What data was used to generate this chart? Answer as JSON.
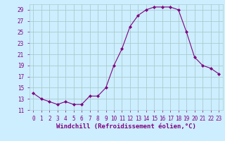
{
  "x": [
    0,
    1,
    2,
    3,
    4,
    5,
    6,
    7,
    8,
    9,
    10,
    11,
    12,
    13,
    14,
    15,
    16,
    17,
    18,
    19,
    20,
    21,
    22,
    23
  ],
  "y": [
    14,
    13,
    12.5,
    12,
    12.5,
    12,
    12,
    13.5,
    13.5,
    15,
    19,
    22,
    26,
    28,
    29,
    29.5,
    29.5,
    29.5,
    29,
    25,
    20.5,
    19,
    18.5,
    17.5
  ],
  "line_color": "#800080",
  "marker": "D",
  "marker_size": 2,
  "bg_color": "#cceeff",
  "grid_color": "#aacccc",
  "xlabel": "Windchill (Refroidissement éolien,°C)",
  "ylim": [
    11,
    30
  ],
  "xlim": [
    -0.5,
    23.5
  ],
  "yticks": [
    11,
    13,
    15,
    17,
    19,
    21,
    23,
    25,
    27,
    29
  ],
  "xticks": [
    0,
    1,
    2,
    3,
    4,
    5,
    6,
    7,
    8,
    9,
    10,
    11,
    12,
    13,
    14,
    15,
    16,
    17,
    18,
    19,
    20,
    21,
    22,
    23
  ],
  "label_fontsize": 6.5,
  "tick_fontsize": 5.5
}
